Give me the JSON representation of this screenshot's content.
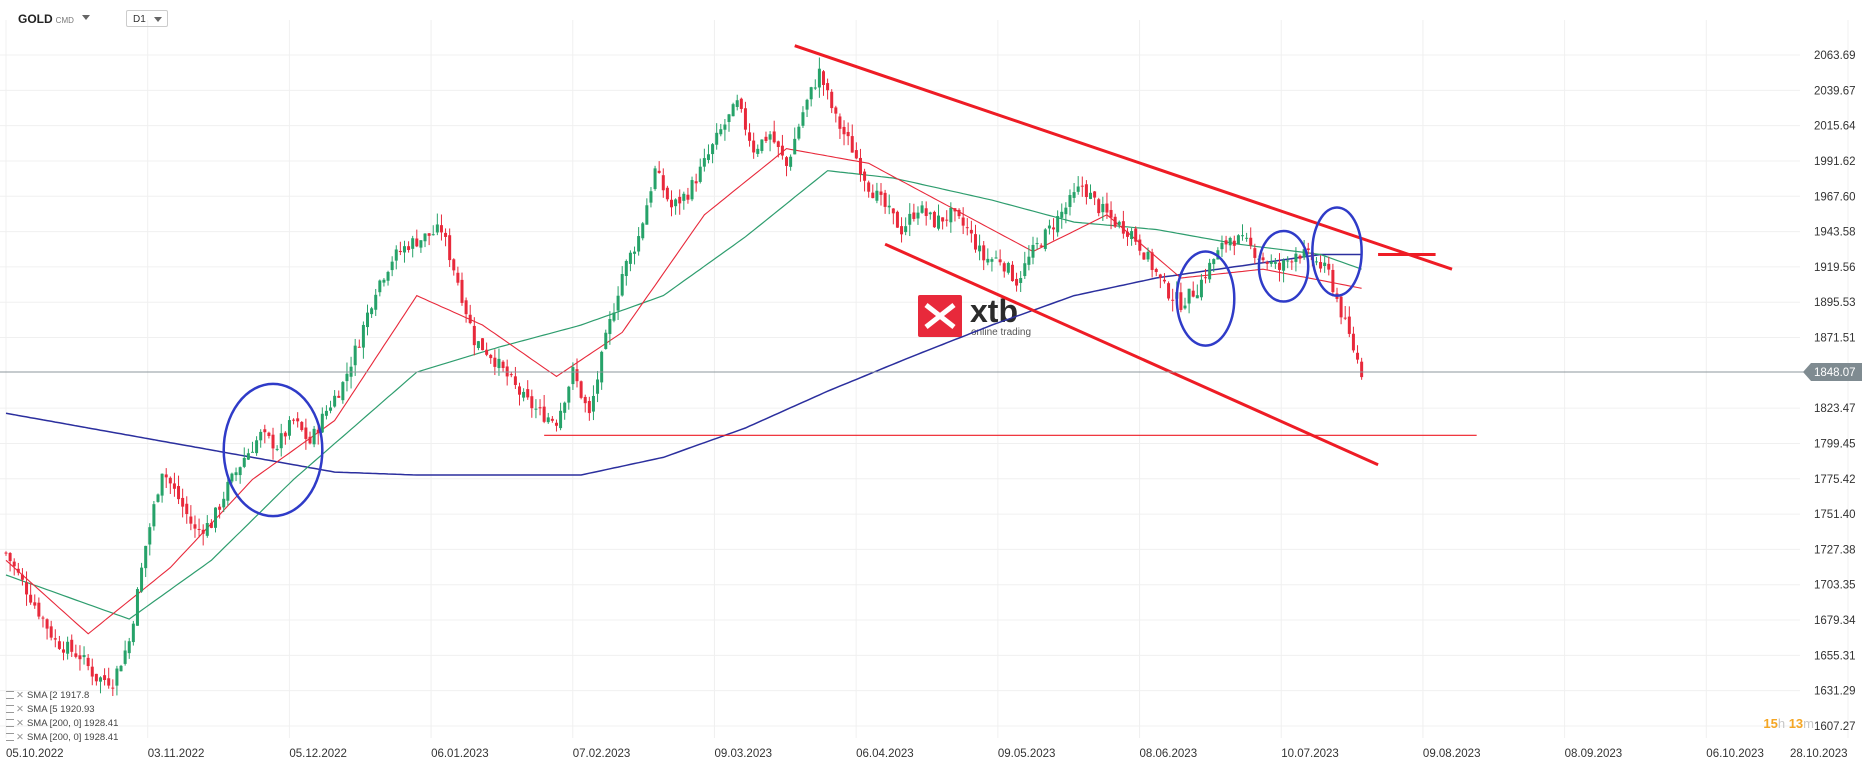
{
  "toolbar": {
    "symbol": "GOLD",
    "symbol_tag": "CMD",
    "timeframe": "D1"
  },
  "countdown": {
    "hours": "15",
    "hours_unit": "h",
    "minutes": "13",
    "minutes_unit": "m"
  },
  "brand": {
    "name": "xtb",
    "tagline": "online trading"
  },
  "colors": {
    "up": "#26a269",
    "down": "#e8293b",
    "sma20": "#e8293b",
    "sma50": "#2e9d6e",
    "sma200": "#2b2f9e",
    "trend": "#ee1c25",
    "marker": "#2f3bc8",
    "price_line": "#8c979d",
    "price_tag": "#7f8b91"
  },
  "legend": [
    {
      "name": "SMA",
      "period": "[2",
      "value": "1917.8"
    },
    {
      "name": "SMA",
      "period": "[5",
      "value": "1920.93"
    },
    {
      "name": "SMA",
      "period": "[200, 0]",
      "value": "1928.41"
    },
    {
      "name": "SMA",
      "period": "[200, 0]",
      "value": "1928.41"
    }
  ],
  "chart_data": {
    "type": "candlestick",
    "instrument": "GOLD",
    "timeframe": "D1",
    "last_price": "1848.07",
    "y_axis": {
      "ticks": [
        "2063.69",
        "2039.67",
        "2015.64",
        "1991.62",
        "1967.60",
        "1943.58",
        "1919.56",
        "1895.53",
        "1871.51",
        "1848.07",
        "1823.47",
        "1799.45",
        "1775.42",
        "1751.40",
        "1727.38",
        "1703.35",
        "1679.34",
        "1655.31",
        "1631.29",
        "1607.27"
      ],
      "range": [
        1607.27,
        2063.69
      ]
    },
    "x_axis": {
      "ticks": [
        "05.10.2022",
        "03.11.2022",
        "05.12.2022",
        "06.01.2023",
        "07.02.2023",
        "09.03.2023",
        "06.04.2023",
        "09.05.2023",
        "08.06.2023",
        "10.07.2023",
        "09.08.2023",
        "08.09.2023",
        "06.10.2023",
        "28.10.2023"
      ]
    },
    "price_path_anchors": [
      [
        0,
        1725
      ],
      [
        6,
        1695
      ],
      [
        12,
        1665
      ],
      [
        18,
        1655
      ],
      [
        22,
        1640
      ],
      [
        26,
        1638
      ],
      [
        30,
        1665
      ],
      [
        34,
        1730
      ],
      [
        38,
        1782
      ],
      [
        42,
        1762
      ],
      [
        46,
        1740
      ],
      [
        50,
        1745
      ],
      [
        54,
        1770
      ],
      [
        58,
        1790
      ],
      [
        62,
        1805
      ],
      [
        66,
        1798
      ],
      [
        70,
        1815
      ],
      [
        74,
        1800
      ],
      [
        78,
        1822
      ],
      [
        82,
        1840
      ],
      [
        86,
        1870
      ],
      [
        90,
        1905
      ],
      [
        94,
        1925
      ],
      [
        98,
        1935
      ],
      [
        102,
        1940
      ],
      [
        106,
        1945
      ],
      [
        110,
        1910
      ],
      [
        114,
        1870
      ],
      [
        118,
        1860
      ],
      [
        122,
        1845
      ],
      [
        126,
        1830
      ],
      [
        130,
        1820
      ],
      [
        134,
        1815
      ],
      [
        138,
        1848
      ],
      [
        142,
        1818
      ],
      [
        146,
        1870
      ],
      [
        150,
        1915
      ],
      [
        154,
        1940
      ],
      [
        158,
        1985
      ],
      [
        162,
        1960
      ],
      [
        166,
        1970
      ],
      [
        170,
        1990
      ],
      [
        174,
        2012
      ],
      [
        178,
        2030
      ],
      [
        182,
        2000
      ],
      [
        186,
        2010
      ],
      [
        190,
        1988
      ],
      [
        194,
        2025
      ],
      [
        198,
        2052
      ],
      [
        202,
        2020
      ],
      [
        206,
        2000
      ],
      [
        210,
        1975
      ],
      [
        214,
        1960
      ],
      [
        218,
        1945
      ],
      [
        222,
        1960
      ],
      [
        226,
        1950
      ],
      [
        230,
        1955
      ],
      [
        234,
        1945
      ],
      [
        238,
        1925
      ],
      [
        242,
        1925
      ],
      [
        246,
        1910
      ],
      [
        250,
        1930
      ],
      [
        254,
        1945
      ],
      [
        258,
        1960
      ],
      [
        262,
        1975
      ],
      [
        266,
        1960
      ],
      [
        270,
        1950
      ],
      [
        274,
        1943
      ],
      [
        278,
        1925
      ],
      [
        282,
        1905
      ],
      [
        286,
        1895
      ],
      [
        290,
        1905
      ],
      [
        294,
        1925
      ],
      [
        298,
        1940
      ],
      [
        302,
        1935
      ],
      [
        306,
        1925
      ],
      [
        310,
        1918
      ],
      [
        314,
        1930
      ],
      [
        318,
        1925
      ],
      [
        322,
        1915
      ],
      [
        326,
        1880
      ],
      [
        330,
        1848
      ]
    ],
    "sma_20_anchors": [
      [
        0,
        1720
      ],
      [
        20,
        1670
      ],
      [
        40,
        1715
      ],
      [
        60,
        1775
      ],
      [
        80,
        1815
      ],
      [
        100,
        1900
      ],
      [
        116,
        1880
      ],
      [
        134,
        1845
      ],
      [
        150,
        1875
      ],
      [
        170,
        1955
      ],
      [
        190,
        2000
      ],
      [
        210,
        1990
      ],
      [
        230,
        1960
      ],
      [
        250,
        1930
      ],
      [
        268,
        1955
      ],
      [
        286,
        1912
      ],
      [
        306,
        1918
      ],
      [
        330,
        1905
      ]
    ],
    "sma_50_anchors": [
      [
        0,
        1710
      ],
      [
        30,
        1680
      ],
      [
        50,
        1720
      ],
      [
        70,
        1775
      ],
      [
        100,
        1848
      ],
      [
        120,
        1865
      ],
      [
        140,
        1880
      ],
      [
        160,
        1900
      ],
      [
        180,
        1940
      ],
      [
        200,
        1985
      ],
      [
        216,
        1980
      ],
      [
        240,
        1965
      ],
      [
        260,
        1950
      ],
      [
        280,
        1945
      ],
      [
        300,
        1935
      ],
      [
        320,
        1928
      ],
      [
        330,
        1918
      ]
    ],
    "sma_200_anchors": [
      [
        0,
        1820
      ],
      [
        40,
        1800
      ],
      [
        80,
        1780
      ],
      [
        100,
        1778
      ],
      [
        140,
        1778
      ],
      [
        160,
        1790
      ],
      [
        180,
        1810
      ],
      [
        200,
        1835
      ],
      [
        220,
        1858
      ],
      [
        240,
        1880
      ],
      [
        260,
        1900
      ],
      [
        280,
        1912
      ],
      [
        300,
        1920
      ],
      [
        320,
        1928
      ],
      [
        330,
        1928
      ]
    ],
    "trendlines": [
      {
        "name": "upper-channel",
        "from": [
          192,
          2070
        ],
        "to": [
          352,
          1918
        ]
      },
      {
        "name": "lower-channel",
        "from": [
          214,
          1935
        ],
        "to": [
          334,
          1785
        ]
      },
      {
        "name": "support",
        "from": [
          131,
          1805
        ],
        "to": [
          358,
          1805
        ]
      },
      {
        "name": "resistance-marker",
        "from": [
          334,
          1928
        ],
        "to": [
          348,
          1928
        ]
      }
    ],
    "highlight_circles": [
      {
        "center": [
          65,
          1795
        ],
        "radius_days": 12,
        "radius_price": 45
      },
      {
        "center": [
          292,
          1898
        ],
        "radius_days": 7,
        "radius_price": 32
      },
      {
        "center": [
          311,
          1920
        ],
        "radius_days": 6,
        "radius_price": 24
      },
      {
        "center": [
          324,
          1930
        ],
        "radius_days": 6,
        "radius_price": 30
      }
    ]
  }
}
